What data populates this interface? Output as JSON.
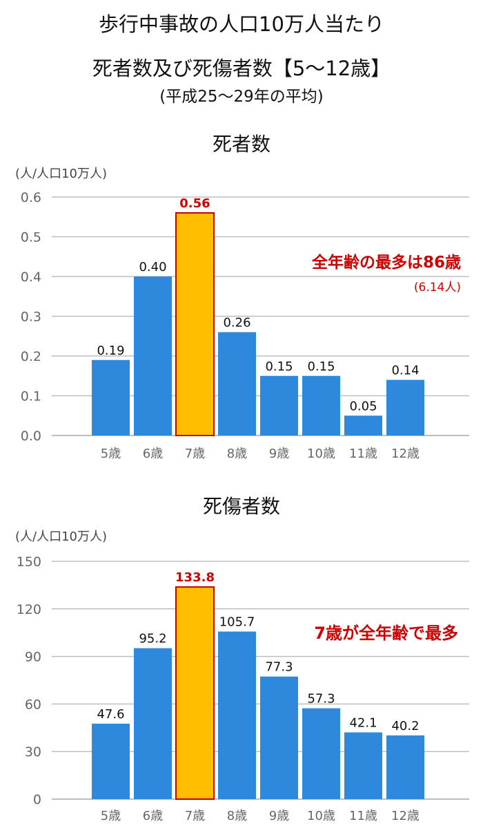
{
  "header": {
    "title_line1": "歩行中事故の人口10万人当たり",
    "title_line2": "死者数及び死傷者数【5〜12歳】",
    "period": "(平成25〜29年の平均)"
  },
  "colors": {
    "bar": "#2E88DB",
    "highlight": "#FFBE00",
    "highlight_border": "#C00000",
    "accent_text": "#CC0000",
    "grid": "#BDBDBD",
    "axis_text": "#666666"
  },
  "chart_data": [
    {
      "type": "bar",
      "title": "死者数",
      "ylabel": "(人/人口10万人)",
      "categories": [
        "5歳",
        "6歳",
        "7歳",
        "8歳",
        "9歳",
        "10歳",
        "11歳",
        "12歳"
      ],
      "values": [
        0.19,
        0.4,
        0.56,
        0.26,
        0.15,
        0.15,
        0.05,
        0.14
      ],
      "value_labels": [
        "0.19",
        "0.40",
        "0.56",
        "0.26",
        "0.15",
        "0.15",
        "0.05",
        "0.14"
      ],
      "highlight_index": 2,
      "ylim": [
        0,
        0.6
      ],
      "yticks": [
        "0.0",
        "0.1",
        "0.2",
        "0.3",
        "0.4",
        "0.5",
        "0.6"
      ],
      "grid": true,
      "annotation": "全年齢の最多は86歳",
      "annotation_sub": "(6.14人)"
    },
    {
      "type": "bar",
      "title": "死傷者数",
      "ylabel": "(人/人口10万人)",
      "categories": [
        "5歳",
        "6歳",
        "7歳",
        "8歳",
        "9歳",
        "10歳",
        "11歳",
        "12歳"
      ],
      "values": [
        47.6,
        95.2,
        133.8,
        105.7,
        77.3,
        57.3,
        42.1,
        40.2
      ],
      "value_labels": [
        "47.6",
        "95.2",
        "133.8",
        "105.7",
        "77.3",
        "57.3",
        "42.1",
        "40.2"
      ],
      "highlight_index": 2,
      "ylim": [
        0,
        150
      ],
      "yticks": [
        "0",
        "30",
        "60",
        "90",
        "120",
        "150"
      ],
      "grid": true,
      "annotation": "7歳が全年齢で最多",
      "annotation_sub": ""
    }
  ]
}
